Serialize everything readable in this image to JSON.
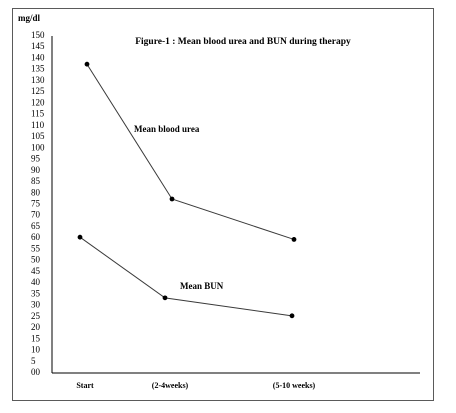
{
  "chart_data": {
    "type": "line",
    "title": "Figure-1 : Mean blood urea and BUN during therapy",
    "ylabel": "mg/dl",
    "xlabel": "",
    "categories": [
      "Start",
      "(2-4weeks)",
      "(5-10 weeks)"
    ],
    "ylim": [
      0,
      150
    ],
    "yticks": [
      "00",
      "5",
      "10",
      "15",
      "20",
      "25",
      "30",
      "35",
      "40",
      "45",
      "50",
      "55",
      "60",
      "65",
      "70",
      "75",
      "80",
      "85",
      "90",
      "95",
      "100",
      "105",
      "110",
      "115",
      "120",
      "125",
      "130",
      "135",
      "140",
      "145",
      "150"
    ],
    "series": [
      {
        "name": "Mean blood urea",
        "values": [
          137,
          77,
          59
        ]
      },
      {
        "name": "Mean BUN",
        "values": [
          60,
          33,
          25
        ]
      }
    ],
    "grid": false,
    "colors": {
      "line": "#3a3a3a",
      "marker": "#000000",
      "frame": "#5a5a5a"
    }
  }
}
